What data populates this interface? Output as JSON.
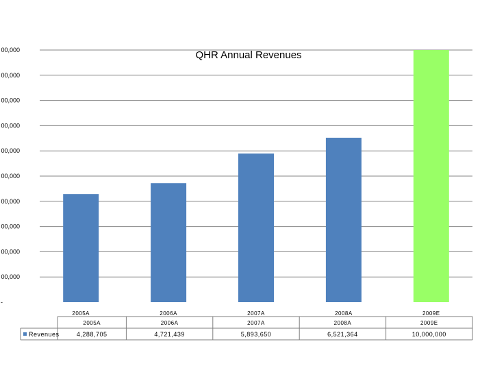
{
  "chart_data": {
    "type": "bar",
    "title": "QHR Annual Revenues",
    "categories": [
      "2005A",
      "2006A",
      "2007A",
      "2008A",
      "2009E"
    ],
    "series": [
      {
        "name": "Revenues",
        "values": [
          4288705,
          4721439,
          5893650,
          6521364,
          10000000
        ],
        "value_labels": [
          "4,288,705",
          "4,721,439",
          "5,893,650",
          "6,521,364",
          "10,000,000"
        ],
        "colors": [
          "#4F81BD",
          "#4F81BD",
          "#4F81BD",
          "#4F81BD",
          "#99FF66"
        ]
      }
    ],
    "ylim": [
      0,
      10000000
    ],
    "y_ticks": [
      0,
      1000000,
      2000000,
      3000000,
      4000000,
      5000000,
      6000000,
      7000000,
      8000000,
      9000000,
      10000000
    ],
    "y_tick_labels": [
      "-",
      "00,000",
      "00,000",
      "00,000",
      "00,000",
      "00,000",
      "00,000",
      "00,000",
      "00,000",
      "00,000",
      "00,000"
    ],
    "grid": true,
    "legend": "data-table",
    "data_table": true
  }
}
